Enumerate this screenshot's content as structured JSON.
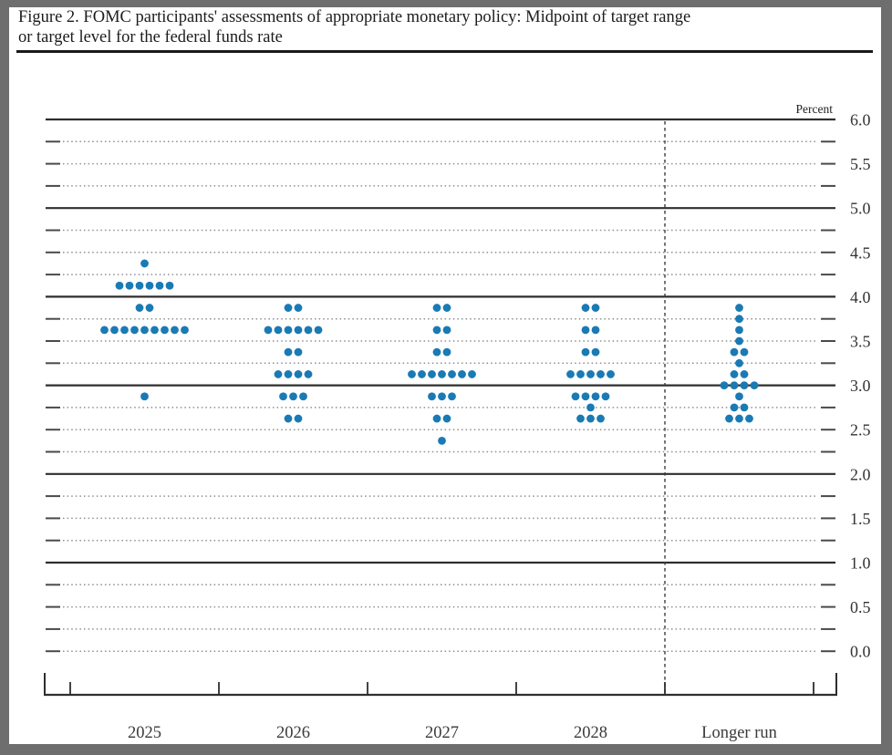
{
  "header": {
    "title_line1": "Figure 2. FOMC participants' assessments of appropriate monetary policy: Midpoint of target range",
    "title_line2": "or target level for the federal funds rate"
  },
  "chart_data": {
    "type": "scatter",
    "subtype": "fomc-dot-plot",
    "title": "Figure 2. FOMC participants' assessments of appropriate monetary policy: Midpoint of target range or target level for the federal funds rate",
    "ylabel": "Percent",
    "ylim": [
      0.0,
      6.0
    ],
    "y_minor_step": 0.25,
    "grid": "dotted lines at each quarter point, solid lines at whole percents, labels every half percent",
    "legend": "none",
    "dot_color": "#1a7ab4",
    "categories": [
      "2025",
      "2026",
      "2027",
      "2028",
      "Longer run"
    ],
    "separator_before_category": "Longer run",
    "y_ticks": [
      {
        "value": 6.0,
        "label": "6.0"
      },
      {
        "value": 5.5,
        "label": "5.5"
      },
      {
        "value": 5.0,
        "label": "5.0"
      },
      {
        "value": 4.5,
        "label": "4.5"
      },
      {
        "value": 4.0,
        "label": "4.0"
      },
      {
        "value": 3.5,
        "label": "3.5"
      },
      {
        "value": 3.0,
        "label": "3.0"
      },
      {
        "value": 2.5,
        "label": "2.5"
      },
      {
        "value": 2.0,
        "label": "2.0"
      },
      {
        "value": 1.5,
        "label": "1.5"
      },
      {
        "value": 1.0,
        "label": "1.0"
      },
      {
        "value": 0.5,
        "label": "0.5"
      },
      {
        "value": 0.0,
        "label": "0.0"
      }
    ],
    "series": [
      {
        "category": "2025",
        "participants": 19,
        "dots": [
          {
            "rate": 4.375,
            "count": 1
          },
          {
            "rate": 4.125,
            "count": 6
          },
          {
            "rate": 3.875,
            "count": 2
          },
          {
            "rate": 3.625,
            "count": 9
          },
          {
            "rate": 2.875,
            "count": 1
          }
        ]
      },
      {
        "category": "2026",
        "participants": 19,
        "dots": [
          {
            "rate": 3.875,
            "count": 2
          },
          {
            "rate": 3.625,
            "count": 6
          },
          {
            "rate": 3.375,
            "count": 2
          },
          {
            "rate": 3.125,
            "count": 4
          },
          {
            "rate": 2.875,
            "count": 3
          },
          {
            "rate": 2.625,
            "count": 2
          }
        ]
      },
      {
        "category": "2027",
        "participants": 19,
        "dots": [
          {
            "rate": 3.875,
            "count": 2
          },
          {
            "rate": 3.625,
            "count": 2
          },
          {
            "rate": 3.375,
            "count": 2
          },
          {
            "rate": 3.125,
            "count": 7
          },
          {
            "rate": 2.875,
            "count": 3
          },
          {
            "rate": 2.625,
            "count": 2
          },
          {
            "rate": 2.375,
            "count": 1
          }
        ]
      },
      {
        "category": "2028",
        "participants": 19,
        "dots": [
          {
            "rate": 3.875,
            "count": 2
          },
          {
            "rate": 3.625,
            "count": 2
          },
          {
            "rate": 3.375,
            "count": 2
          },
          {
            "rate": 3.125,
            "count": 5
          },
          {
            "rate": 2.875,
            "count": 4
          },
          {
            "rate": 2.75,
            "count": 1
          },
          {
            "rate": 2.625,
            "count": 3
          }
        ]
      },
      {
        "category": "Longer run",
        "participants": 19,
        "dots": [
          {
            "rate": 3.875,
            "count": 1
          },
          {
            "rate": 3.75,
            "count": 1
          },
          {
            "rate": 3.625,
            "count": 1
          },
          {
            "rate": 3.5,
            "count": 1
          },
          {
            "rate": 3.375,
            "count": 2
          },
          {
            "rate": 3.25,
            "count": 1
          },
          {
            "rate": 3.125,
            "count": 2
          },
          {
            "rate": 3.0,
            "count": 4
          },
          {
            "rate": 2.875,
            "count": 1
          },
          {
            "rate": 2.75,
            "count": 2
          },
          {
            "rate": 2.625,
            "count": 3
          }
        ]
      }
    ]
  }
}
